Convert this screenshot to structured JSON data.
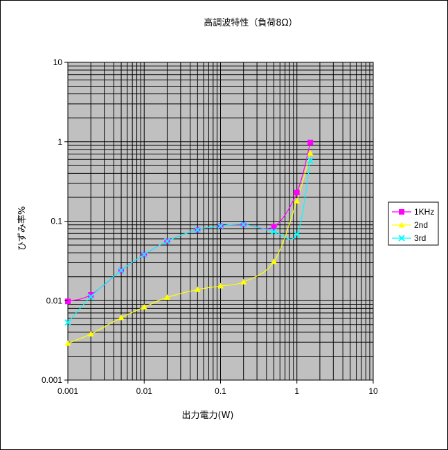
{
  "chart_data": {
    "type": "line",
    "title": "高調波特性（負荷8Ω）",
    "xlabel": "出力電力(W)",
    "ylabel": "ひずみ率%",
    "xscale": "log",
    "yscale": "log",
    "xlim": [
      0.001,
      10
    ],
    "ylim": [
      0.001,
      10
    ],
    "x_tick_labels": [
      "0.001",
      "0.01",
      "0.1",
      "1",
      "10"
    ],
    "y_tick_labels": [
      "10",
      "1",
      "0.1",
      "0.01",
      "0.001"
    ],
    "grid": true,
    "plot_background": "#c0c0c0",
    "legend_position": "right",
    "series": [
      {
        "name": "1KHz",
        "color": "#ff00ff",
        "marker": "square",
        "x": [
          0.001,
          0.002,
          0.005,
          0.01,
          0.02,
          0.05,
          0.1,
          0.2,
          0.5,
          1,
          1.5
        ],
        "y": [
          0.0098,
          0.0118,
          0.024,
          0.038,
          0.056,
          0.078,
          0.087,
          0.091,
          0.085,
          0.23,
          0.98
        ]
      },
      {
        "name": "2nd",
        "color": "#ffff00",
        "marker": "triangle",
        "x": [
          0.001,
          0.002,
          0.005,
          0.01,
          0.02,
          0.05,
          0.1,
          0.2,
          0.5,
          1,
          1.5
        ],
        "y": [
          0.0029,
          0.0038,
          0.0061,
          0.0083,
          0.011,
          0.0138,
          0.0153,
          0.0172,
          0.031,
          0.18,
          0.72
        ]
      },
      {
        "name": "3rd",
        "color": "#00ffff",
        "marker": "x",
        "x": [
          0.001,
          0.002,
          0.005,
          0.01,
          0.02,
          0.05,
          0.1,
          0.2,
          0.5,
          1,
          1.5
        ],
        "y": [
          0.0053,
          0.0112,
          0.024,
          0.038,
          0.056,
          0.078,
          0.087,
          0.091,
          0.074,
          0.068,
          0.58
        ]
      }
    ]
  }
}
